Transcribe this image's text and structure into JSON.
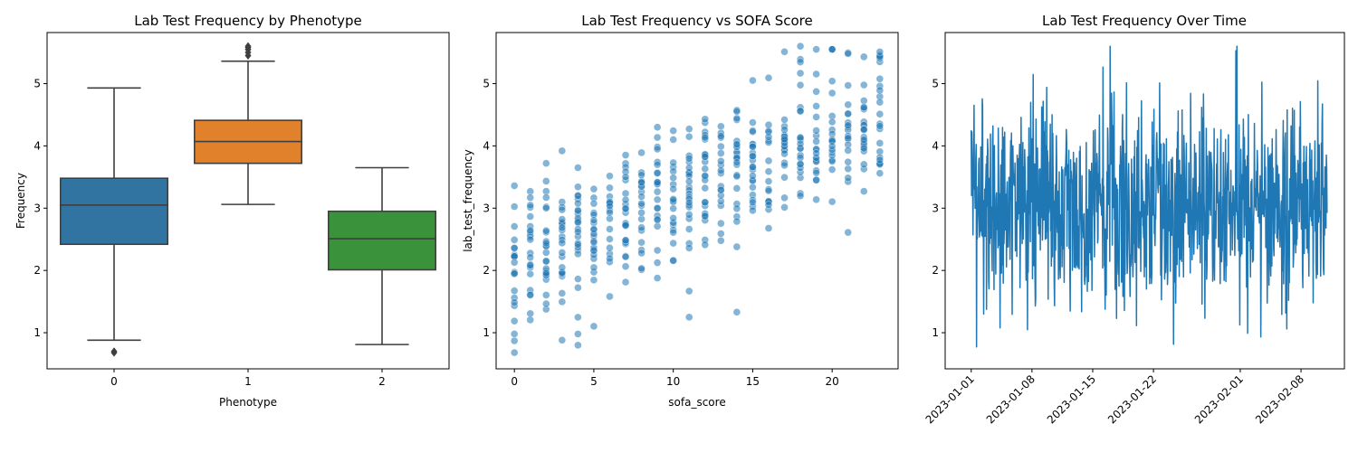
{
  "chart_data": [
    {
      "type": "box",
      "title": "Lab Test Frequency by Phenotype",
      "xlabel": "Phenotype",
      "ylabel": "Frequency",
      "categories": [
        "0",
        "1",
        "2"
      ],
      "xlim": [
        -0.5,
        2.5
      ],
      "ylim": [
        0.42,
        5.82
      ],
      "yticks": [
        1,
        2,
        3,
        4,
        5
      ],
      "boxes": [
        {
          "category": "0",
          "whisker_low": 0.88,
          "q1": 2.42,
          "median": 3.05,
          "q3": 3.48,
          "whisker_high": 4.93,
          "outliers": [
            0.68,
            0.7
          ],
          "color": "#3274a1"
        },
        {
          "category": "1",
          "whisker_low": 3.06,
          "q1": 3.72,
          "median": 4.07,
          "q3": 4.41,
          "whisker_high": 5.36,
          "outliers": [
            5.45,
            5.5,
            5.55,
            5.58,
            5.6
          ],
          "color": "#e1812c"
        },
        {
          "category": "2",
          "whisker_low": 0.81,
          "q1": 2.01,
          "median": 2.51,
          "q3": 2.95,
          "whisker_high": 3.65,
          "outliers": [],
          "color": "#3a923a"
        }
      ],
      "grid": false
    },
    {
      "type": "scatter",
      "title": "Lab Test Frequency vs SOFA Score",
      "xlabel": "sofa_score",
      "ylabel": "lab_test_frequency",
      "xlim": [
        -1.15,
        24.15
      ],
      "ylim": [
        0.42,
        5.82
      ],
      "xticks": [
        0,
        5,
        10,
        15,
        20
      ],
      "yticks": [
        1,
        2,
        3,
        4,
        5
      ],
      "point_color": "#1f77b4",
      "point_alpha": 0.55,
      "x_range": [
        0,
        23
      ],
      "trend": {
        "intercept": 2.15,
        "slope": 0.098
      },
      "notable_points": [
        {
          "x": 0,
          "y": 0.68
        },
        {
          "x": 0,
          "y": 0.87
        },
        {
          "x": 0,
          "y": 0.98
        },
        {
          "x": 2,
          "y": 3.72
        },
        {
          "x": 4,
          "y": 0.8
        },
        {
          "x": 3,
          "y": 0.88
        },
        {
          "x": 9,
          "y": 4.3
        },
        {
          "x": 11,
          "y": 1.25
        },
        {
          "x": 14,
          "y": 1.33
        },
        {
          "x": 15,
          "y": 5.05
        },
        {
          "x": 18,
          "y": 5.6
        },
        {
          "x": 20,
          "y": 5.55
        },
        {
          "x": 22,
          "y": 5.43
        },
        {
          "x": 23,
          "y": 5.51
        },
        {
          "x": 21,
          "y": 2.61
        }
      ],
      "grid": false
    },
    {
      "type": "line",
      "title": "Lab Test Frequency Over Time",
      "xlabel": "",
      "ylabel": "",
      "x_start": "2023-01-01",
      "x_end": "2023-02-11",
      "xlim": [
        "2022-12-29",
        "2023-02-13"
      ],
      "ylim": [
        0.42,
        5.82
      ],
      "xticks": [
        "2023-01-01",
        "2023-01-08",
        "2023-01-15",
        "2023-01-22",
        "2023-02-01",
        "2023-02-08"
      ],
      "yticks": [
        1,
        2,
        3,
        4,
        5
      ],
      "line_color": "#1f77b4",
      "samples": 1000,
      "value_range": [
        0.68,
        5.6
      ],
      "grid": false
    }
  ]
}
